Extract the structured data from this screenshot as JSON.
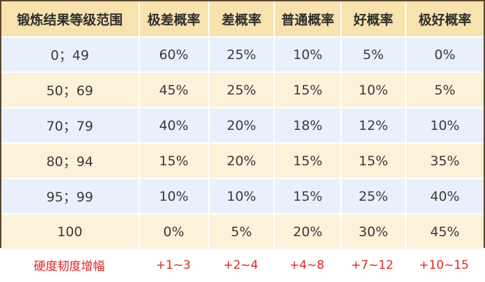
{
  "table": {
    "headers": [
      "锻炼结果等级范围",
      "极差概率",
      "差概率",
      "普通概率",
      "好概率",
      "极好概率"
    ],
    "rows": [
      [
        "0；49",
        "60%",
        "25%",
        "10%",
        "5%",
        "0%"
      ],
      [
        "50；69",
        "45%",
        "25%",
        "15%",
        "10%",
        "5%"
      ],
      [
        "70；79",
        "40%",
        "20%",
        "18%",
        "12%",
        "10%"
      ],
      [
        "80；94",
        "15%",
        "20%",
        "15%",
        "15%",
        "35%"
      ],
      [
        "95；99",
        "10%",
        "10%",
        "15%",
        "25%",
        "40%"
      ],
      [
        "100",
        "0%",
        "5%",
        "20%",
        "30%",
        "45%"
      ]
    ]
  },
  "footer": {
    "label": "硬度韧度增幅",
    "values": [
      "+1~3",
      "+2~4",
      "+4~8",
      "+7~12",
      "+10~15"
    ]
  },
  "colors": {
    "frame": "#5a4630",
    "header_bg": "#f8e2ae",
    "row_blue": "#e8f1fb",
    "row_cream": "#fcf1d9",
    "footer_text": "#e02424"
  }
}
